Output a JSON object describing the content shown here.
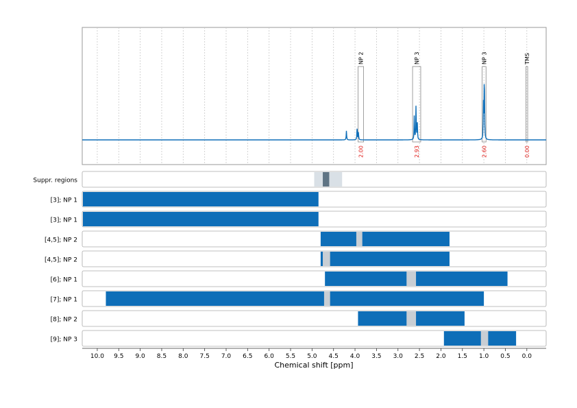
{
  "chart_data": {
    "type": "nmr-spectrum-with-region-bars",
    "xlabel": "Chemical shift [ppm]",
    "x_reversed": true,
    "xlim": [
      10.35,
      -0.45
    ],
    "x_ticks": [
      "10.0",
      "9.5",
      "9.0",
      "8.5",
      "8.0",
      "7.5",
      "7.0",
      "6.5",
      "6.0",
      "5.5",
      "5.0",
      "4.5",
      "4.0",
      "3.5",
      "3.0",
      "2.5",
      "2.0",
      "1.5",
      "1.0",
      "0.5",
      "0.0"
    ],
    "grid": true,
    "colors": {
      "primary": "#0e6eb8",
      "suppression": "#c8ced4",
      "suppression_dark": "#5f7484",
      "suppression_light": "#d9e0e6",
      "annotation_text": "#e0201c",
      "gridline": "#c8c8c8",
      "box": "#888888"
    },
    "spectrum": {
      "peaks": [
        {
          "ppm": 4.2,
          "height": 0.12
        },
        {
          "ppm": 3.95,
          "height": 0.18
        },
        {
          "ppm": 3.92,
          "height": 0.1
        },
        {
          "ppm": 2.62,
          "height": 0.32
        },
        {
          "ppm": 2.58,
          "height": 0.45
        },
        {
          "ppm": 2.55,
          "height": 0.22
        },
        {
          "ppm": 0.99,
          "height": 0.95
        },
        {
          "ppm": 1.01,
          "height": 0.45
        }
      ],
      "annotations": [
        {
          "label": "NP 2",
          "value": "2.00",
          "ppm_start": 3.93,
          "ppm_end": 3.8
        },
        {
          "label": "NP 3",
          "value": "2.93",
          "ppm_start": 2.66,
          "ppm_end": 2.47
        },
        {
          "label": "NP 3",
          "value": "2.60",
          "ppm_start": 1.04,
          "ppm_end": 0.95
        },
        {
          "label": "TMS",
          "value": "0.00",
          "ppm_start": 0.02,
          "ppm_end": -0.02
        }
      ]
    },
    "rows": [
      {
        "label": "Suppr. regions",
        "kind": "suppression",
        "regions": [
          {
            "start": 4.95,
            "end": 4.3,
            "shade": "light"
          },
          {
            "start": 4.75,
            "end": 4.6,
            "shade": "dark"
          }
        ]
      },
      {
        "label": "[3]; NP 1",
        "bars": [
          {
            "start": 10.35,
            "end": 4.85
          }
        ],
        "gaps": []
      },
      {
        "label": "[3]; NP 1",
        "bars": [
          {
            "start": 10.35,
            "end": 4.85
          }
        ],
        "gaps": []
      },
      {
        "label": "[4,5]; NP 2",
        "bars": [
          {
            "start": 4.8,
            "end": 1.8
          }
        ],
        "gaps": [
          {
            "start": 3.97,
            "end": 3.83
          }
        ]
      },
      {
        "label": "[4,5]; NP 2",
        "bars": [
          {
            "start": 4.8,
            "end": 1.8
          }
        ],
        "gaps": [
          {
            "start": 4.75,
            "end": 4.58
          }
        ]
      },
      {
        "label": "[6]; NP 1",
        "bars": [
          {
            "start": 4.7,
            "end": 0.45
          }
        ],
        "gaps": [
          {
            "start": 2.8,
            "end": 2.58
          }
        ]
      },
      {
        "label": "[7]; NP 1",
        "bars": [
          {
            "start": 9.8,
            "end": 1.0
          }
        ],
        "gaps": [
          {
            "start": 4.72,
            "end": 4.58
          }
        ]
      },
      {
        "label": "[8]; NP 2",
        "bars": [
          {
            "start": 3.93,
            "end": 1.45
          }
        ],
        "gaps": [
          {
            "start": 2.8,
            "end": 2.58
          }
        ]
      },
      {
        "label": "[9]; NP 3",
        "bars": [
          {
            "start": 1.93,
            "end": 0.25
          }
        ],
        "gaps": [
          {
            "start": 1.07,
            "end": 0.9
          }
        ]
      }
    ]
  }
}
